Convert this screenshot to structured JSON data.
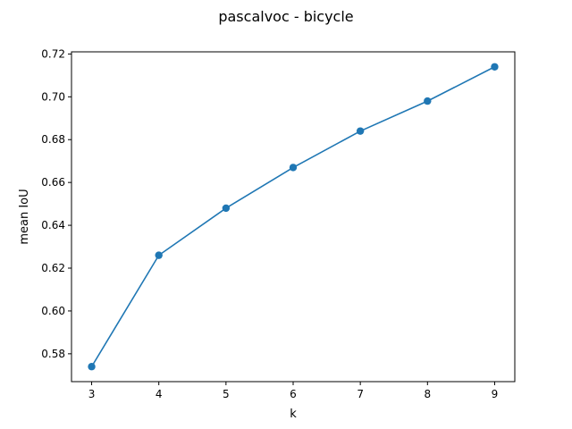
{
  "chart_data": {
    "type": "line",
    "title": "pascalvoc - bicycle",
    "xlabel": "k",
    "ylabel": "mean IoU",
    "x": [
      3,
      4,
      5,
      6,
      7,
      8,
      9
    ],
    "series": [
      {
        "values": [
          0.574,
          0.626,
          0.648,
          0.667,
          0.684,
          0.698,
          0.714
        ]
      }
    ],
    "xticks": [
      "3",
      "4",
      "5",
      "6",
      "7",
      "8",
      "9"
    ],
    "yticks": [
      "0.58",
      "0.60",
      "0.62",
      "0.64",
      "0.66",
      "0.68",
      "0.70",
      "0.72"
    ],
    "xlim": [
      2.7,
      9.3
    ],
    "ylim": [
      0.567,
      0.721
    ],
    "grid": false,
    "marker": "circle",
    "color": "#1f77b4"
  }
}
